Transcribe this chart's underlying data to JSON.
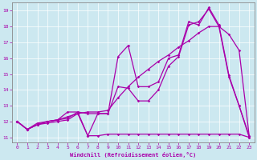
{
  "xlabel": "Windchill (Refroidissement éolien,°C)",
  "bg_color": "#cce8f0",
  "line_color": "#aa00aa",
  "xlim": [
    -0.5,
    23.5
  ],
  "ylim": [
    10.7,
    19.5
  ],
  "yticks": [
    11,
    12,
    13,
    14,
    15,
    16,
    17,
    18,
    19
  ],
  "xticks": [
    0,
    1,
    2,
    3,
    4,
    5,
    6,
    7,
    8,
    9,
    10,
    11,
    12,
    13,
    14,
    15,
    16,
    17,
    18,
    19,
    20,
    21,
    22,
    23
  ],
  "lines": [
    [
      12.0,
      11.5,
      11.8,
      11.9,
      12.0,
      12.1,
      12.5,
      11.1,
      11.1,
      11.2,
      11.2,
      11.2,
      11.2,
      11.2,
      11.2,
      11.2,
      11.2,
      11.2,
      11.2,
      11.2,
      11.2,
      11.2,
      11.2,
      11.0
    ],
    [
      12.0,
      11.5,
      11.9,
      12.0,
      12.1,
      12.3,
      12.5,
      12.6,
      12.6,
      12.7,
      13.5,
      14.2,
      14.8,
      15.3,
      15.8,
      16.2,
      16.7,
      17.1,
      17.6,
      18.0,
      18.0,
      17.5,
      16.5,
      11.1
    ],
    [
      12.0,
      11.5,
      11.8,
      12.0,
      12.1,
      12.2,
      12.6,
      11.1,
      12.5,
      12.5,
      14.2,
      14.1,
      13.3,
      13.3,
      14.0,
      15.5,
      16.1,
      18.1,
      18.3,
      19.1,
      18.0,
      14.8,
      13.0,
      11.0
    ],
    [
      12.0,
      11.5,
      11.8,
      12.0,
      12.1,
      12.6,
      12.6,
      12.5,
      12.5,
      12.5,
      16.1,
      16.8,
      14.2,
      14.2,
      14.5,
      16.0,
      16.2,
      18.3,
      18.1,
      19.2,
      18.1,
      14.9,
      13.0,
      11.1
    ]
  ]
}
